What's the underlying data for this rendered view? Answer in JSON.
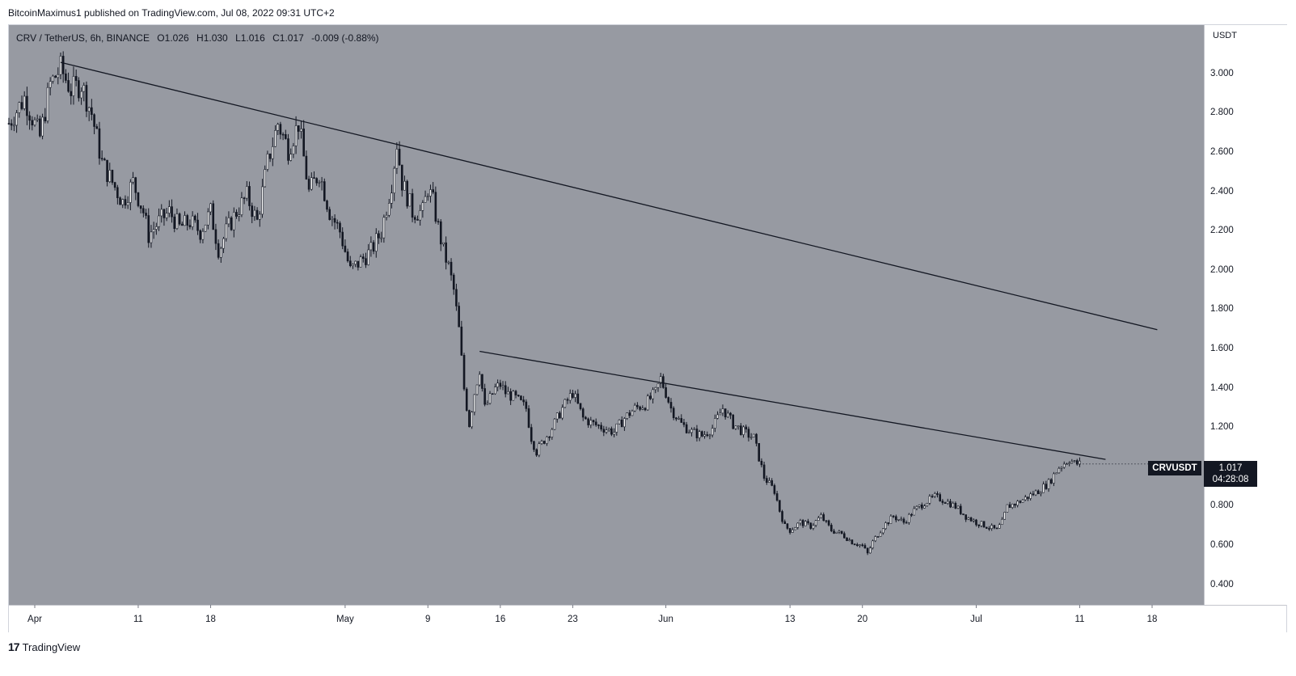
{
  "header": {
    "published": "BitcoinMaximus1 published on TradingView.com, Jul 08, 2022 09:31 UTC+2"
  },
  "legend": {
    "symbol": "CRV / TetherUS, 6h, BINANCE",
    "o_label": "O",
    "o_value": "1.026",
    "h_label": "H",
    "h_value": "1.030",
    "l_label": "L",
    "l_value": "1.016",
    "c_label": "C",
    "c_value": "1.017",
    "change": "-0.009 (-0.88%)"
  },
  "price_axis": {
    "currency": "USDT"
  },
  "last_price_tag": {
    "symbol": "CRVUSDT",
    "price": "1.017",
    "countdown": "04:28:08"
  },
  "footer": {
    "brand": "TradingView",
    "logo_glyph": "17"
  },
  "colors": {
    "plot_bg": "#979aa2",
    "candle": "#131722",
    "trendline": "#131722",
    "tag_bg": "#131722"
  },
  "chart_data": {
    "type": "candlestick",
    "timeframe": "6h",
    "x_ticks": [
      {
        "label": "Apr",
        "day": 0
      },
      {
        "label": "11",
        "day": 10
      },
      {
        "label": "18",
        "day": 17
      },
      {
        "label": "May",
        "day": 30
      },
      {
        "label": "9",
        "day": 38
      },
      {
        "label": "16",
        "day": 45
      },
      {
        "label": "23",
        "day": 52
      },
      {
        "label": "Jun",
        "day": 61
      },
      {
        "label": "13",
        "day": 73
      },
      {
        "label": "20",
        "day": 80
      },
      {
        "label": "Jul",
        "day": 91
      },
      {
        "label": "11",
        "day": 101
      },
      {
        "label": "18",
        "day": 108
      }
    ],
    "y_ticks": [
      "3.000",
      "2.800",
      "2.600",
      "2.400",
      "2.200",
      "2.000",
      "1.800",
      "1.600",
      "1.400",
      "1.200",
      "1.000",
      "0.800",
      "0.600",
      "0.400"
    ],
    "ylim": [
      0.3,
      3.25
    ],
    "xlim": [
      -2.5,
      113
    ],
    "price_path": [
      [
        -2.5,
        2.75
      ],
      [
        -1,
        2.88
      ],
      [
        0.5,
        2.68
      ],
      [
        1.5,
        2.95
      ],
      [
        2.5,
        3.03
      ],
      [
        3.5,
        2.92
      ],
      [
        4.5,
        2.95
      ],
      [
        5.5,
        2.8
      ],
      [
        6.5,
        2.55
      ],
      [
        7.5,
        2.45
      ],
      [
        8.5,
        2.35
      ],
      [
        9.5,
        2.45
      ],
      [
        10.5,
        2.3
      ],
      [
        11,
        2.18
      ],
      [
        12,
        2.25
      ],
      [
        13,
        2.3
      ],
      [
        14,
        2.22
      ],
      [
        15,
        2.25
      ],
      [
        16,
        2.2
      ],
      [
        17,
        2.3
      ],
      [
        17.8,
        2.1
      ],
      [
        18.5,
        2.2
      ],
      [
        19.5,
        2.3
      ],
      [
        20.5,
        2.38
      ],
      [
        21.5,
        2.25
      ],
      [
        22.5,
        2.55
      ],
      [
        23.5,
        2.75
      ],
      [
        24.5,
        2.62
      ],
      [
        25.5,
        2.75
      ],
      [
        26.5,
        2.4
      ],
      [
        27.5,
        2.5
      ],
      [
        28.5,
        2.3
      ],
      [
        29.5,
        2.2
      ],
      [
        30.5,
        2.0
      ],
      [
        31.5,
        2.05
      ],
      [
        32.5,
        2.1
      ],
      [
        33.5,
        2.2
      ],
      [
        34.5,
        2.45
      ],
      [
        35,
        2.65
      ],
      [
        35.5,
        2.45
      ],
      [
        36,
        2.38
      ],
      [
        36.5,
        2.3
      ],
      [
        37.5,
        2.3
      ],
      [
        38,
        2.42
      ],
      [
        38.5,
        2.35
      ],
      [
        39,
        2.22
      ],
      [
        39.5,
        2.1
      ],
      [
        40,
        2.02
      ],
      [
        40.5,
        1.9
      ],
      [
        41,
        1.7
      ],
      [
        41.5,
        1.4
      ],
      [
        42,
        1.22
      ],
      [
        42.5,
        1.38
      ],
      [
        43,
        1.5
      ],
      [
        43.5,
        1.3
      ],
      [
        44,
        1.35
      ],
      [
        44.5,
        1.4
      ],
      [
        45,
        1.42
      ],
      [
        45.5,
        1.38
      ],
      [
        46.5,
        1.35
      ],
      [
        47.5,
        1.3
      ],
      [
        48,
        1.15
      ],
      [
        48.5,
        1.08
      ],
      [
        49,
        1.12
      ],
      [
        50,
        1.2
      ],
      [
        51,
        1.3
      ],
      [
        52,
        1.38
      ],
      [
        53,
        1.25
      ],
      [
        54,
        1.22
      ],
      [
        55,
        1.2
      ],
      [
        56,
        1.18
      ],
      [
        57,
        1.25
      ],
      [
        58,
        1.3
      ],
      [
        59,
        1.32
      ],
      [
        60,
        1.38
      ],
      [
        60.5,
        1.45
      ],
      [
        61,
        1.38
      ],
      [
        61.5,
        1.3
      ],
      [
        62.5,
        1.22
      ],
      [
        63.5,
        1.18
      ],
      [
        64.5,
        1.16
      ],
      [
        65.5,
        1.2
      ],
      [
        66.5,
        1.3
      ],
      [
        67.5,
        1.22
      ],
      [
        68.5,
        1.18
      ],
      [
        69.5,
        1.15
      ],
      [
        70,
        1.05
      ],
      [
        70.5,
        0.95
      ],
      [
        71.5,
        0.88
      ],
      [
        72,
        0.78
      ],
      [
        72.5,
        0.7
      ],
      [
        73,
        0.68
      ],
      [
        74,
        0.72
      ],
      [
        75,
        0.7
      ],
      [
        76,
        0.75
      ],
      [
        77,
        0.68
      ],
      [
        78,
        0.66
      ],
      [
        79,
        0.62
      ],
      [
        80,
        0.6
      ],
      [
        80.5,
        0.56
      ],
      [
        81,
        0.62
      ],
      [
        82,
        0.7
      ],
      [
        83,
        0.75
      ],
      [
        84,
        0.72
      ],
      [
        85,
        0.78
      ],
      [
        86,
        0.82
      ],
      [
        87,
        0.85
      ],
      [
        88,
        0.83
      ],
      [
        89,
        0.8
      ],
      [
        90,
        0.75
      ],
      [
        91,
        0.72
      ],
      [
        92,
        0.7
      ],
      [
        93,
        0.68
      ],
      [
        93.5,
        0.72
      ],
      [
        94,
        0.8
      ],
      [
        95,
        0.82
      ],
      [
        96,
        0.85
      ],
      [
        97,
        0.88
      ],
      [
        98,
        0.92
      ],
      [
        99,
        1.0
      ],
      [
        100,
        1.04
      ],
      [
        100.5,
        1.02
      ],
      [
        101,
        1.017
      ]
    ],
    "trendlines": [
      {
        "x1": 2.5,
        "y1": 3.06,
        "x2": 108.5,
        "y2": 1.7
      },
      {
        "x1": 43.0,
        "y1": 1.59,
        "x2": 103.5,
        "y2": 1.04
      }
    ]
  }
}
